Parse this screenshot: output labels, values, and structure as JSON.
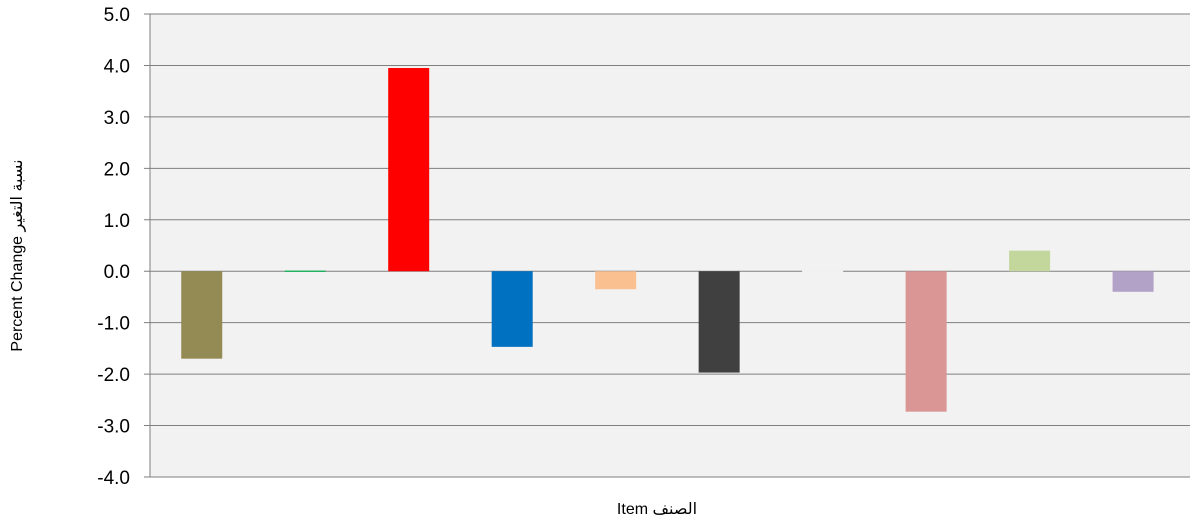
{
  "chart_data": {
    "type": "bar",
    "title": "",
    "xlabel": "Item   الصنف",
    "ylabel": "Percent Change   نسبة التغير",
    "ylim": [
      -4.0,
      5.0
    ],
    "yticks": [
      "5.0",
      "4.0",
      "3.0",
      "2.0",
      "1.0",
      "0.0",
      "-1.0",
      "-2.0",
      "-3.0",
      "-4.0"
    ],
    "grid": true,
    "legend": "none",
    "categories": [
      "",
      "",
      "",
      "",
      "",
      "",
      "",
      "",
      "",
      ""
    ],
    "values": [
      -1.7,
      0.0,
      3.95,
      -1.47,
      -0.35,
      -1.97,
      0.0,
      -2.73,
      0.4,
      -0.4
    ],
    "colors": [
      "#948A54",
      "#00B050",
      "#FF0000",
      "#0070C0",
      "#FAC090",
      "#404040",
      "#FFFFFF",
      "#D99694",
      "#C3D69B",
      "#B3A2C7"
    ],
    "plot_background": "#F2F2F2",
    "gridline_color": "#7F7F7F"
  }
}
